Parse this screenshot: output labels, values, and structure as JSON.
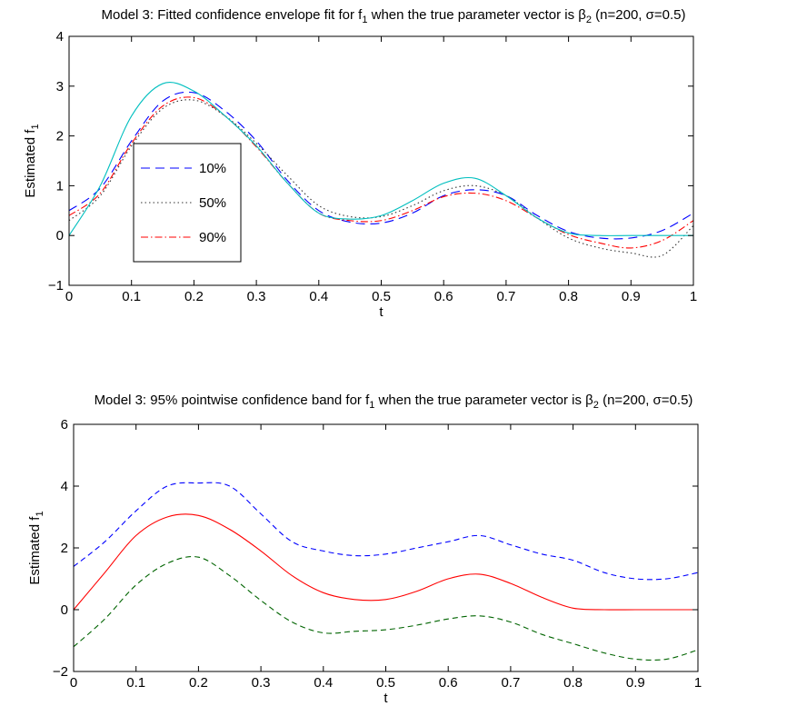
{
  "chart_data": [
    {
      "type": "line",
      "title_parts": [
        "Model 3: Fitted confidence envelope fit for f",
        "1",
        " when the true parameter vector is β",
        "2",
        " (n=200, σ=0.5)"
      ],
      "xlabel": "t",
      "ylabel_main": "Estimated f",
      "ylabel_sub": "1",
      "xlim": [
        0,
        1
      ],
      "ylim": [
        -1,
        4
      ],
      "xticks": [
        "0",
        "0.1",
        "0.2",
        "0.3",
        "0.4",
        "0.5",
        "0.6",
        "0.7",
        "0.8",
        "0.9",
        "1"
      ],
      "yticks": [
        "−1",
        "0",
        "1",
        "2",
        "3",
        "4"
      ],
      "grid": false,
      "legend_position": "left",
      "x": [
        0,
        0.05,
        0.1,
        0.15,
        0.2,
        0.25,
        0.3,
        0.35,
        0.4,
        0.45,
        0.5,
        0.55,
        0.6,
        0.65,
        0.7,
        0.75,
        0.8,
        0.85,
        0.9,
        0.95,
        1.0
      ],
      "series": [
        {
          "name": "10%",
          "color": "#0000ff",
          "dash": "10,6",
          "values": [
            0.5,
            0.95,
            1.9,
            2.7,
            2.87,
            2.5,
            1.9,
            1.1,
            0.5,
            0.27,
            0.25,
            0.45,
            0.8,
            0.92,
            0.8,
            0.4,
            0.08,
            -0.05,
            -0.05,
            0.1,
            0.45
          ]
        },
        {
          "name": "50%",
          "color": "#333333",
          "dash": "1.5,3",
          "values": [
            0.3,
            0.8,
            1.8,
            2.55,
            2.72,
            2.4,
            1.85,
            1.2,
            0.6,
            0.38,
            0.38,
            0.6,
            0.9,
            1.0,
            0.8,
            0.35,
            -0.05,
            -0.25,
            -0.35,
            -0.4,
            0.2
          ]
        },
        {
          "name": "90%",
          "color": "#ff0000",
          "dash": "8,3,1.5,3",
          "values": [
            0.4,
            0.85,
            1.85,
            2.6,
            2.77,
            2.4,
            1.78,
            1.05,
            0.45,
            0.3,
            0.3,
            0.5,
            0.78,
            0.85,
            0.7,
            0.35,
            0.02,
            -0.15,
            -0.25,
            -0.1,
            0.3
          ]
        },
        {
          "name": "",
          "color": "#00bfbf",
          "dash": "",
          "values": [
            0.0,
            1.0,
            2.4,
            3.05,
            2.9,
            2.4,
            1.8,
            1.05,
            0.45,
            0.33,
            0.4,
            0.7,
            1.05,
            1.15,
            0.8,
            0.35,
            0.05,
            0.0,
            0.0,
            0.0,
            0.0
          ]
        }
      ]
    },
    {
      "type": "line",
      "title_parts": [
        "Model 3: 95% pointwise confidence band for f",
        "1",
        " when the true parameter vector is β",
        "2",
        " (n=200, σ=0.5)"
      ],
      "xlabel": "t",
      "ylabel_main": "Estimated f",
      "ylabel_sub": "1",
      "xlim": [
        0,
        1
      ],
      "ylim": [
        -2,
        6
      ],
      "xticks": [
        "0",
        "0.1",
        "0.2",
        "0.3",
        "0.4",
        "0.5",
        "0.6",
        "0.7",
        "0.8",
        "0.9",
        "1"
      ],
      "yticks": [
        "−2",
        "0",
        "2",
        "4",
        "6"
      ],
      "grid": false,
      "x": [
        0,
        0.05,
        0.1,
        0.15,
        0.2,
        0.25,
        0.3,
        0.35,
        0.4,
        0.45,
        0.5,
        0.55,
        0.6,
        0.65,
        0.7,
        0.75,
        0.8,
        0.85,
        0.9,
        0.95,
        1.0
      ],
      "series": [
        {
          "name": "",
          "color": "#0000ff",
          "dash": "6,4",
          "values": [
            1.4,
            2.2,
            3.2,
            4.0,
            4.1,
            4.0,
            3.1,
            2.2,
            1.9,
            1.75,
            1.8,
            2.0,
            2.2,
            2.4,
            2.1,
            1.8,
            1.6,
            1.2,
            1.0,
            1.0,
            1.2
          ]
        },
        {
          "name": "",
          "color": "#ff0000",
          "dash": "",
          "values": [
            0.0,
            1.2,
            2.4,
            3.0,
            3.05,
            2.6,
            1.9,
            1.1,
            0.55,
            0.33,
            0.33,
            0.6,
            1.0,
            1.15,
            0.85,
            0.4,
            0.05,
            0.0,
            0.0,
            0.0,
            0.0
          ]
        },
        {
          "name": "",
          "color": "#006400",
          "dash": "6,4",
          "values": [
            -1.2,
            -0.3,
            0.8,
            1.5,
            1.7,
            1.1,
            0.3,
            -0.4,
            -0.75,
            -0.7,
            -0.65,
            -0.5,
            -0.3,
            -0.2,
            -0.4,
            -0.8,
            -1.1,
            -1.4,
            -1.6,
            -1.6,
            -1.3
          ]
        }
      ]
    }
  ]
}
